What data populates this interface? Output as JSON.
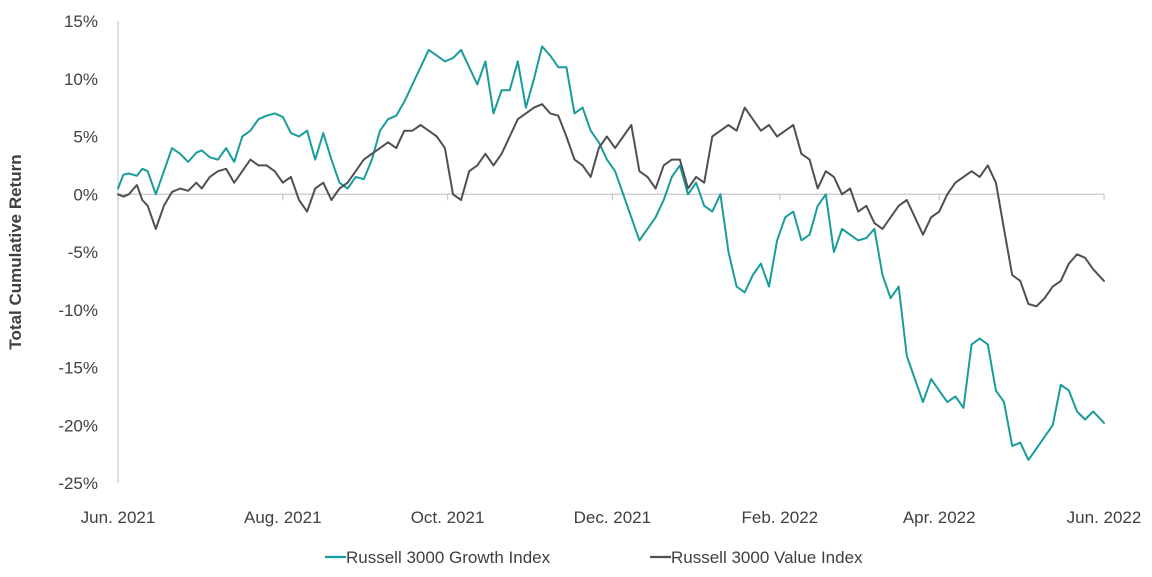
{
  "chart_data": {
    "type": "line",
    "ylabel": "Total Cumulative Return",
    "xlabel": "",
    "ylim": [
      -25,
      15
    ],
    "yticks": [
      15,
      10,
      5,
      0,
      -5,
      -10,
      -15,
      -20,
      -25
    ],
    "ytick_labels": [
      "15%",
      "10%",
      "5%",
      "0%",
      "-5%",
      "-10%",
      "-15%",
      "-20%",
      "-25%"
    ],
    "xlim": [
      "2021-06-01",
      "2022-06-01"
    ],
    "xticks": [
      "2021-06-01",
      "2021-08-01",
      "2021-10-01",
      "2021-12-01",
      "2022-02-01",
      "2022-04-01",
      "2022-06-01"
    ],
    "xtick_labels": [
      "Jun. 2021",
      "Aug. 2021",
      "Oct. 2021",
      "Dec. 2021",
      "Feb. 2022",
      "Apr. 2022",
      "Jun. 2022"
    ],
    "grid": false,
    "legend_position": "bottom",
    "series": [
      {
        "name": "Russell 3000 Growth Index",
        "color": "#1a9c9c",
        "x": [
          "2021-06-01",
          "2021-06-03",
          "2021-06-05",
          "2021-06-08",
          "2021-06-10",
          "2021-06-12",
          "2021-06-15",
          "2021-06-18",
          "2021-06-21",
          "2021-06-24",
          "2021-06-27",
          "2021-06-30",
          "2021-07-02",
          "2021-07-05",
          "2021-07-08",
          "2021-07-11",
          "2021-07-14",
          "2021-07-17",
          "2021-07-20",
          "2021-07-23",
          "2021-07-26",
          "2021-07-29",
          "2021-08-01",
          "2021-08-04",
          "2021-08-07",
          "2021-08-10",
          "2021-08-13",
          "2021-08-16",
          "2021-08-19",
          "2021-08-22",
          "2021-08-25",
          "2021-08-28",
          "2021-08-31",
          "2021-09-03",
          "2021-09-06",
          "2021-09-09",
          "2021-09-12",
          "2021-09-15",
          "2021-09-18",
          "2021-09-21",
          "2021-09-24",
          "2021-09-27",
          "2021-09-30",
          "2021-10-03",
          "2021-10-06",
          "2021-10-09",
          "2021-10-12",
          "2021-10-15",
          "2021-10-18",
          "2021-10-21",
          "2021-10-24",
          "2021-10-27",
          "2021-10-30",
          "2021-11-02",
          "2021-11-05",
          "2021-11-08",
          "2021-11-11",
          "2021-11-14",
          "2021-11-17",
          "2021-11-20",
          "2021-11-23",
          "2021-11-26",
          "2021-11-29",
          "2021-12-02",
          "2021-12-05",
          "2021-12-08",
          "2021-12-11",
          "2021-12-14",
          "2021-12-17",
          "2021-12-20",
          "2021-12-23",
          "2021-12-26",
          "2021-12-29",
          "2022-01-01",
          "2022-01-04",
          "2022-01-07",
          "2022-01-10",
          "2022-01-13",
          "2022-01-16",
          "2022-01-19",
          "2022-01-22",
          "2022-01-25",
          "2022-01-28",
          "2022-01-31",
          "2022-02-03",
          "2022-02-06",
          "2022-02-09",
          "2022-02-12",
          "2022-02-15",
          "2022-02-18",
          "2022-02-21",
          "2022-02-24",
          "2022-02-27",
          "2022-03-02",
          "2022-03-05",
          "2022-03-08",
          "2022-03-11",
          "2022-03-14",
          "2022-03-17",
          "2022-03-20",
          "2022-03-23",
          "2022-03-26",
          "2022-03-29",
          "2022-04-01",
          "2022-04-04",
          "2022-04-07",
          "2022-04-10",
          "2022-04-13",
          "2022-04-16",
          "2022-04-19",
          "2022-04-22",
          "2022-04-25",
          "2022-04-28",
          "2022-05-01",
          "2022-05-04",
          "2022-05-07",
          "2022-05-10",
          "2022-05-13",
          "2022-05-16",
          "2022-05-19",
          "2022-05-22",
          "2022-05-25",
          "2022-05-28",
          "2022-06-01"
        ],
        "y": [
          0.5,
          1.7,
          1.8,
          1.6,
          2.2,
          2.0,
          0.0,
          2.0,
          4.0,
          3.5,
          2.8,
          3.6,
          3.8,
          3.2,
          3.0,
          4.0,
          2.8,
          5.0,
          5.5,
          6.5,
          6.8,
          7.0,
          6.7,
          5.3,
          5.0,
          5.5,
          3.0,
          5.3,
          3.0,
          1.0,
          0.5,
          1.5,
          1.3,
          3.0,
          5.5,
          6.5,
          6.8,
          8.0,
          9.5,
          11.0,
          12.5,
          12.0,
          11.5,
          11.8,
          12.5,
          11.0,
          9.5,
          11.5,
          7.0,
          9.0,
          9.0,
          11.5,
          7.5,
          10.0,
          12.8,
          12.0,
          11.0,
          11.0,
          7.0,
          7.5,
          5.5,
          4.5,
          3.0,
          2.0,
          0.0,
          -2.0,
          -4.0,
          -3.0,
          -2.0,
          -0.5,
          1.5,
          2.5,
          0.0,
          1.0,
          -1.0,
          -1.5,
          0.0,
          -5.0,
          -8.0,
          -8.5,
          -7.0,
          -6.0,
          -8.0,
          -4.0,
          -2.0,
          -1.5,
          -4.0,
          -3.5,
          -1.0,
          0.0,
          -5.0,
          -3.0,
          -3.5,
          -4.0,
          -3.8,
          -3.0,
          -7.0,
          -9.0,
          -8.0,
          -14.0,
          -16.0,
          -18.0,
          -16.0,
          -17.0,
          -18.0,
          -17.5,
          -18.5,
          -13.0,
          -12.5,
          -13.0,
          -17.0,
          -18.0,
          -21.8,
          -21.5,
          -23.0,
          -22.0,
          -21.0,
          -20.0,
          -16.5,
          -17.0,
          -18.8,
          -19.5,
          -18.8,
          -19.8
        ]
      },
      {
        "name": "Russell 3000 Value Index",
        "color": "#505050",
        "x": [
          "2021-06-01",
          "2021-06-03",
          "2021-06-05",
          "2021-06-08",
          "2021-06-10",
          "2021-06-12",
          "2021-06-15",
          "2021-06-18",
          "2021-06-21",
          "2021-06-24",
          "2021-06-27",
          "2021-06-30",
          "2021-07-02",
          "2021-07-05",
          "2021-07-08",
          "2021-07-11",
          "2021-07-14",
          "2021-07-17",
          "2021-07-20",
          "2021-07-23",
          "2021-07-26",
          "2021-07-29",
          "2021-08-01",
          "2021-08-04",
          "2021-08-07",
          "2021-08-10",
          "2021-08-13",
          "2021-08-16",
          "2021-08-19",
          "2021-08-22",
          "2021-08-25",
          "2021-08-28",
          "2021-08-31",
          "2021-09-03",
          "2021-09-06",
          "2021-09-09",
          "2021-09-12",
          "2021-09-15",
          "2021-09-18",
          "2021-09-21",
          "2021-09-24",
          "2021-09-27",
          "2021-09-30",
          "2021-10-03",
          "2021-10-06",
          "2021-10-09",
          "2021-10-12",
          "2021-10-15",
          "2021-10-18",
          "2021-10-21",
          "2021-10-24",
          "2021-10-27",
          "2021-10-30",
          "2021-11-02",
          "2021-11-05",
          "2021-11-08",
          "2021-11-11",
          "2021-11-14",
          "2021-11-17",
          "2021-11-20",
          "2021-11-23",
          "2021-11-26",
          "2021-11-29",
          "2021-12-02",
          "2021-12-05",
          "2021-12-08",
          "2021-12-11",
          "2021-12-14",
          "2021-12-17",
          "2021-12-20",
          "2021-12-23",
          "2021-12-26",
          "2021-12-29",
          "2022-01-01",
          "2022-01-04",
          "2022-01-07",
          "2022-01-10",
          "2022-01-13",
          "2022-01-16",
          "2022-01-19",
          "2022-01-22",
          "2022-01-25",
          "2022-01-28",
          "2022-01-31",
          "2022-02-03",
          "2022-02-06",
          "2022-02-09",
          "2022-02-12",
          "2022-02-15",
          "2022-02-18",
          "2022-02-21",
          "2022-02-24",
          "2022-02-27",
          "2022-03-02",
          "2022-03-05",
          "2022-03-08",
          "2022-03-11",
          "2022-03-14",
          "2022-03-17",
          "2022-03-20",
          "2022-03-23",
          "2022-03-26",
          "2022-03-29",
          "2022-04-01",
          "2022-04-04",
          "2022-04-07",
          "2022-04-10",
          "2022-04-13",
          "2022-04-16",
          "2022-04-19",
          "2022-04-22",
          "2022-04-25",
          "2022-04-28",
          "2022-05-01",
          "2022-05-04",
          "2022-05-07",
          "2022-05-10",
          "2022-05-13",
          "2022-05-16",
          "2022-05-19",
          "2022-05-22",
          "2022-05-25",
          "2022-05-28",
          "2022-06-01"
        ],
        "y": [
          0.0,
          -0.2,
          0.0,
          0.8,
          -0.5,
          -1.0,
          -3.0,
          -1.0,
          0.2,
          0.5,
          0.3,
          1.0,
          0.5,
          1.5,
          2.0,
          2.2,
          1.0,
          2.0,
          3.0,
          2.5,
          2.5,
          2.0,
          1.0,
          1.5,
          -0.5,
          -1.5,
          0.5,
          1.0,
          -0.5,
          0.5,
          1.0,
          2.0,
          3.0,
          3.5,
          4.0,
          4.5,
          4.0,
          5.5,
          5.5,
          6.0,
          5.5,
          5.0,
          4.0,
          0.0,
          -0.5,
          2.0,
          2.5,
          3.5,
          2.5,
          3.5,
          5.0,
          6.5,
          7.0,
          7.5,
          7.8,
          7.0,
          6.8,
          5.0,
          3.0,
          2.5,
          1.5,
          4.0,
          5.0,
          4.0,
          5.0,
          6.0,
          2.0,
          1.5,
          0.5,
          2.5,
          3.0,
          3.0,
          0.5,
          1.5,
          1.0,
          5.0,
          5.5,
          6.0,
          5.5,
          7.5,
          6.5,
          5.5,
          6.0,
          5.0,
          5.5,
          6.0,
          3.5,
          3.0,
          0.5,
          2.0,
          1.5,
          0.0,
          0.5,
          -1.5,
          -1.0,
          -2.5,
          -3.0,
          -2.0,
          -1.0,
          -0.5,
          -2.0,
          -3.5,
          -2.0,
          -1.5,
          0.0,
          1.0,
          1.5,
          2.0,
          1.5,
          2.5,
          1.0,
          -3.0,
          -7.0,
          -7.5,
          -9.5,
          -9.7,
          -9.0,
          -8.0,
          -7.5,
          -6.0,
          -5.2,
          -5.5,
          -6.5,
          -7.5
        ]
      }
    ]
  }
}
